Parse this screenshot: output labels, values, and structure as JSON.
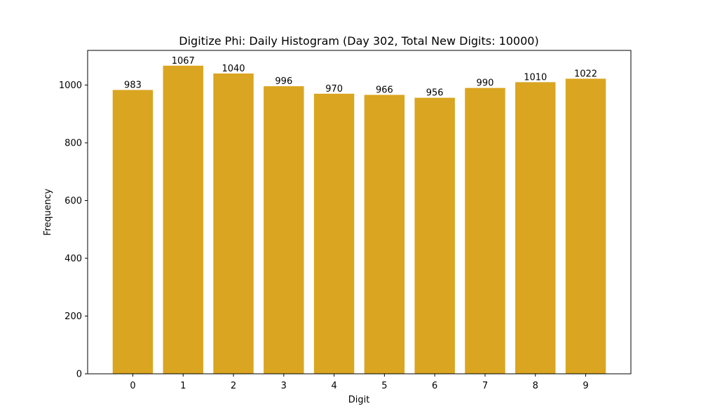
{
  "chart_data": {
    "type": "bar",
    "title": "Digitize Phi: Daily Histogram (Day 302, Total New Digits: 10000)",
    "xlabel": "Digit",
    "ylabel": "Frequency",
    "categories": [
      "0",
      "1",
      "2",
      "3",
      "4",
      "5",
      "6",
      "7",
      "8",
      "9"
    ],
    "values": [
      983,
      1067,
      1040,
      996,
      970,
      966,
      956,
      990,
      1010,
      1022
    ],
    "data_labels": [
      "983",
      "1067",
      "1040",
      "996",
      "970",
      "966",
      "956",
      "990",
      "1010",
      "1022"
    ],
    "yticks": [
      0,
      200,
      400,
      600,
      800,
      1000
    ],
    "ylim": [
      0,
      1120
    ],
    "grid": false,
    "bar_color": "#DAA520"
  }
}
